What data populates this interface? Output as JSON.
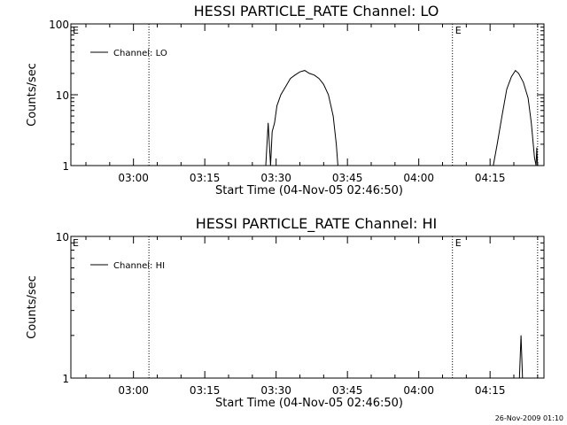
{
  "chart_data": [
    {
      "type": "line",
      "title": "HESSI PARTICLE_RATE Channel: LO",
      "xlabel": "Start Time (04-Nov-05 02:46:50)",
      "ylabel": "Counts/sec",
      "y_scale": "log",
      "ylim": [
        1,
        100
      ],
      "y_ticks": [
        {
          "value": 1,
          "label": "1"
        },
        {
          "value": 10,
          "label": "10"
        },
        {
          "value": 100,
          "label": "100"
        }
      ],
      "xlim": [
        "02:46:50",
        "04:26:20"
      ],
      "x_ticks": [
        "03:00",
        "03:15",
        "03:30",
        "03:45",
        "04:00",
        "04:15"
      ],
      "legend": {
        "position": "top-left",
        "entries": [
          "Channel: LO"
        ]
      },
      "markers": [
        {
          "time": "03:03:15",
          "label": ""
        },
        {
          "time": "04:07:05",
          "label": "E"
        },
        {
          "time": "04:25:00",
          "label": ""
        }
      ],
      "edge_label": "E",
      "series": [
        {
          "name": "Channel: LO",
          "segments": [
            [
              [
                "03:27:50",
                1
              ],
              [
                "03:28:20",
                4
              ],
              [
                "03:28:50",
                1
              ],
              [
                "03:29:10",
                3
              ],
              [
                "03:29:40",
                4
              ],
              [
                "03:30:10",
                7
              ],
              [
                "03:31:00",
                10
              ],
              [
                "03:32:00",
                13
              ],
              [
                "03:33:00",
                17
              ],
              [
                "03:34:00",
                19
              ],
              [
                "03:35:00",
                21
              ],
              [
                "03:36:00",
                22
              ],
              [
                "03:37:00",
                20
              ],
              [
                "03:38:00",
                19
              ],
              [
                "03:39:00",
                17
              ],
              [
                "03:40:00",
                14
              ],
              [
                "03:41:00",
                10
              ],
              [
                "03:42:00",
                5
              ],
              [
                "03:42:40",
                2
              ],
              [
                "03:43:00",
                1
              ]
            ],
            [
              [
                "04:15:40",
                1
              ],
              [
                "04:16:30",
                2
              ],
              [
                "04:17:30",
                5
              ],
              [
                "04:18:30",
                12
              ],
              [
                "04:19:30",
                18
              ],
              [
                "04:20:20",
                22
              ],
              [
                "04:21:00",
                20
              ],
              [
                "04:22:00",
                15
              ],
              [
                "04:23:00",
                9
              ],
              [
                "04:23:40",
                4
              ],
              [
                "04:24:20",
                1.3
              ],
              [
                "04:24:40",
                1
              ],
              [
                "04:24:50",
                1.8
              ],
              [
                "04:25:00",
                1
              ]
            ]
          ]
        }
      ]
    },
    {
      "type": "line",
      "title": "HESSI PARTICLE_RATE Channel: HI",
      "xlabel": "Start Time (04-Nov-05 02:46:50)",
      "ylabel": "Counts/sec",
      "y_scale": "log",
      "ylim": [
        1,
        10
      ],
      "y_ticks": [
        {
          "value": 1,
          "label": "1"
        },
        {
          "value": 10,
          "label": "10"
        }
      ],
      "xlim": [
        "02:46:50",
        "04:26:20"
      ],
      "x_ticks": [
        "03:00",
        "03:15",
        "03:30",
        "03:45",
        "04:00",
        "04:15"
      ],
      "legend": {
        "position": "top-left",
        "entries": [
          "Channel: HI"
        ]
      },
      "markers": [
        {
          "time": "03:03:15",
          "label": ""
        },
        {
          "time": "04:07:05",
          "label": "E"
        },
        {
          "time": "04:25:00",
          "label": ""
        }
      ],
      "edge_label": "E",
      "series": [
        {
          "name": "Channel: HI",
          "segments": [
            [
              [
                "04:21:10",
                1
              ],
              [
                "04:21:30",
                2
              ],
              [
                "04:21:50",
                1
              ]
            ]
          ]
        }
      ]
    }
  ],
  "footer": {
    "timestamp": "26-Nov-2009 01:10"
  }
}
